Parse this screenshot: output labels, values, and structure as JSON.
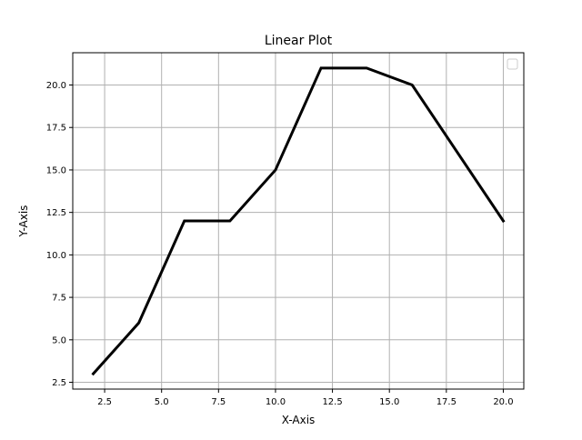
{
  "chart_data": {
    "type": "line",
    "title": "Linear Plot",
    "xlabel": "X-Axis",
    "ylabel": "Y-Axis",
    "x": [
      2,
      4,
      6,
      8,
      10,
      12,
      14,
      16,
      20
    ],
    "series": [
      {
        "name": "",
        "values": [
          3,
          6,
          12,
          12,
          15,
          21,
          21,
          20,
          12
        ]
      }
    ],
    "xlim": [
      1.1,
      20.9
    ],
    "ylim": [
      2.1,
      21.9
    ],
    "xticks": [
      2.5,
      5.0,
      7.5,
      10.0,
      12.5,
      15.0,
      17.5,
      20.0
    ],
    "xtick_labels": [
      "2.5",
      "5.0",
      "7.5",
      "10.0",
      "12.5",
      "15.0",
      "17.5",
      "20.0"
    ],
    "yticks": [
      2.5,
      5.0,
      7.5,
      10.0,
      12.5,
      15.0,
      17.5,
      20.0
    ],
    "ytick_labels": [
      "2.5",
      "5.0",
      "7.5",
      "10.0",
      "12.5",
      "15.0",
      "17.5",
      "20.0"
    ],
    "grid": true,
    "legend": "upper-right (empty)",
    "line_color": "#000000",
    "grid_color": "#b0b0b0"
  }
}
